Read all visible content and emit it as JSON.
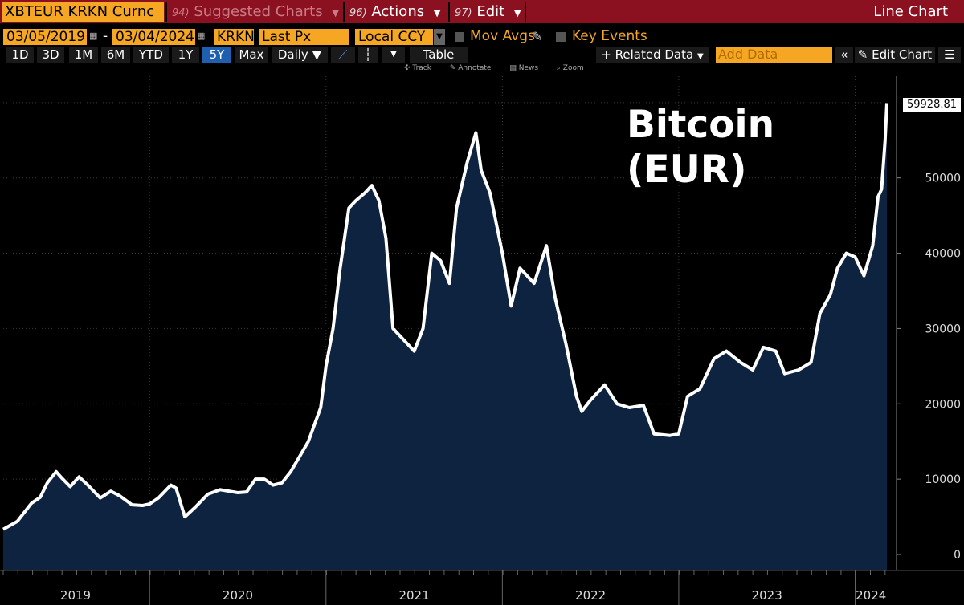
{
  "toolbar1": {
    "ticker": "XBTEUR KRKN Curnc",
    "suggested": {
      "num": "94)",
      "label": "Suggested Charts"
    },
    "actions": {
      "num": "96)",
      "label": "Actions"
    },
    "edit": {
      "num": "97)",
      "label": "Edit"
    },
    "chart_type": "Line Chart"
  },
  "toolbar2": {
    "start_date": "03/05/2019",
    "end_date": "03/04/2024",
    "date_dash": "-",
    "source": "KRKN",
    "field": "Last Px",
    "currency": "Local CCY",
    "mov_avgs": "Mov Avgs",
    "key_events": "Key Events"
  },
  "toolbar3": {
    "periods": [
      "1D",
      "3D",
      "1M",
      "6M",
      "YTD",
      "1Y",
      "5Y",
      "Max"
    ],
    "active_period": "5Y",
    "frequency": "Daily",
    "table": "Table",
    "related_data": "+ Related Data",
    "add_data_placeholder": "Add Data",
    "edit_chart": "Edit Chart"
  },
  "chart_tools": [
    "Track",
    "Annotate",
    "News",
    "Zoom"
  ],
  "chart_data": {
    "type": "area",
    "title": "Bitcoin\n(EUR)",
    "xlabel": "",
    "ylabel": "",
    "ylim": [
      -1500,
      63500
    ],
    "yticks": [
      0,
      10000,
      20000,
      30000,
      40000,
      50000
    ],
    "xticks": [
      "2019",
      "2020",
      "2021",
      "2022",
      "2023",
      "2024"
    ],
    "last_value_label": "59928.81",
    "line_color": "#ffffff",
    "fill_color": "#0e2340",
    "series": [
      {
        "values": [
          [
            2019.17,
            3350
          ],
          [
            2019.25,
            4400
          ],
          [
            2019.33,
            6800
          ],
          [
            2019.38,
            7600
          ],
          [
            2019.42,
            9500
          ],
          [
            2019.47,
            11000
          ],
          [
            2019.5,
            10200
          ],
          [
            2019.55,
            9000
          ],
          [
            2019.6,
            10300
          ],
          [
            2019.65,
            9200
          ],
          [
            2019.72,
            7500
          ],
          [
            2019.78,
            8400
          ],
          [
            2019.83,
            7800
          ],
          [
            2019.9,
            6600
          ],
          [
            2019.96,
            6500
          ],
          [
            2020.0,
            6700
          ],
          [
            2020.05,
            7500
          ],
          [
            2020.12,
            9200
          ],
          [
            2020.15,
            8800
          ],
          [
            2020.2,
            5000
          ],
          [
            2020.26,
            6300
          ],
          [
            2020.33,
            8000
          ],
          [
            2020.4,
            8600
          ],
          [
            2020.5,
            8200
          ],
          [
            2020.55,
            8300
          ],
          [
            2020.6,
            10000
          ],
          [
            2020.65,
            10000
          ],
          [
            2020.7,
            9200
          ],
          [
            2020.75,
            9500
          ],
          [
            2020.8,
            11000
          ],
          [
            2020.85,
            13000
          ],
          [
            2020.9,
            15000
          ],
          [
            2020.97,
            19500
          ],
          [
            2021.0,
            25000
          ],
          [
            2021.04,
            30000
          ],
          [
            2021.08,
            38000
          ],
          [
            2021.13,
            46000
          ],
          [
            2021.17,
            47000
          ],
          [
            2021.22,
            48000
          ],
          [
            2021.26,
            49000
          ],
          [
            2021.3,
            47000
          ],
          [
            2021.34,
            42000
          ],
          [
            2021.38,
            30000
          ],
          [
            2021.42,
            29000
          ],
          [
            2021.5,
            27000
          ],
          [
            2021.55,
            30000
          ],
          [
            2021.6,
            40000
          ],
          [
            2021.65,
            39000
          ],
          [
            2021.7,
            36000
          ],
          [
            2021.74,
            46000
          ],
          [
            2021.8,
            52000
          ],
          [
            2021.85,
            56000
          ],
          [
            2021.88,
            51000
          ],
          [
            2021.93,
            48000
          ],
          [
            2022.0,
            40000
          ],
          [
            2022.05,
            33000
          ],
          [
            2022.1,
            38000
          ],
          [
            2022.18,
            36000
          ],
          [
            2022.25,
            41000
          ],
          [
            2022.3,
            34000
          ],
          [
            2022.36,
            28000
          ],
          [
            2022.42,
            21000
          ],
          [
            2022.45,
            19000
          ],
          [
            2022.5,
            20500
          ],
          [
            2022.58,
            22500
          ],
          [
            2022.65,
            20000
          ],
          [
            2022.72,
            19500
          ],
          [
            2022.8,
            19800
          ],
          [
            2022.86,
            16000
          ],
          [
            2022.95,
            15800
          ],
          [
            2023.0,
            16000
          ],
          [
            2023.05,
            21000
          ],
          [
            2023.12,
            22000
          ],
          [
            2023.2,
            26000
          ],
          [
            2023.27,
            27000
          ],
          [
            2023.35,
            25500
          ],
          [
            2023.42,
            24500
          ],
          [
            2023.48,
            27500
          ],
          [
            2023.55,
            27000
          ],
          [
            2023.6,
            24000
          ],
          [
            2023.68,
            24500
          ],
          [
            2023.75,
            25500
          ],
          [
            2023.8,
            32000
          ],
          [
            2023.86,
            34500
          ],
          [
            2023.9,
            38000
          ],
          [
            2023.95,
            40000
          ],
          [
            2024.0,
            39500
          ],
          [
            2024.05,
            37000
          ],
          [
            2024.1,
            41000
          ],
          [
            2024.13,
            47500
          ],
          [
            2024.15,
            48500
          ],
          [
            2024.17,
            55000
          ],
          [
            2024.18,
            59929
          ]
        ]
      }
    ]
  }
}
